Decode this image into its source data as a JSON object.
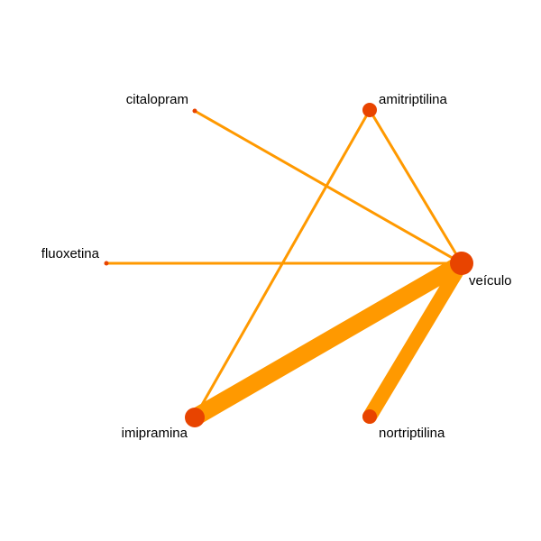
{
  "colors": {
    "edge": "#ff9900",
    "node": "#e84400",
    "background": "#ffffff",
    "label": "#000000"
  },
  "network": {
    "nodes": [
      {
        "id": "citalopram",
        "label": "citalopram",
        "size": 1
      },
      {
        "id": "amitriptilina",
        "label": "amitriptilina",
        "size": 3
      },
      {
        "id": "fluoxetina",
        "label": "fluoxetina",
        "size": 1
      },
      {
        "id": "veiculo",
        "label": "veículo",
        "size": 5
      },
      {
        "id": "imipramina",
        "label": "imipramina",
        "size": 4
      },
      {
        "id": "nortriptilina",
        "label": "nortriptilina",
        "size": 3
      }
    ],
    "edges": [
      {
        "from": "citalopram",
        "to": "veiculo",
        "weight": 1
      },
      {
        "from": "amitriptilina",
        "to": "veiculo",
        "weight": 1
      },
      {
        "from": "amitriptilina",
        "to": "imipramina",
        "weight": 1
      },
      {
        "from": "fluoxetina",
        "to": "veiculo",
        "weight": 1
      },
      {
        "from": "imipramina",
        "to": "veiculo",
        "weight": 6
      },
      {
        "from": "nortriptilina",
        "to": "veiculo",
        "weight": 5
      }
    ]
  }
}
